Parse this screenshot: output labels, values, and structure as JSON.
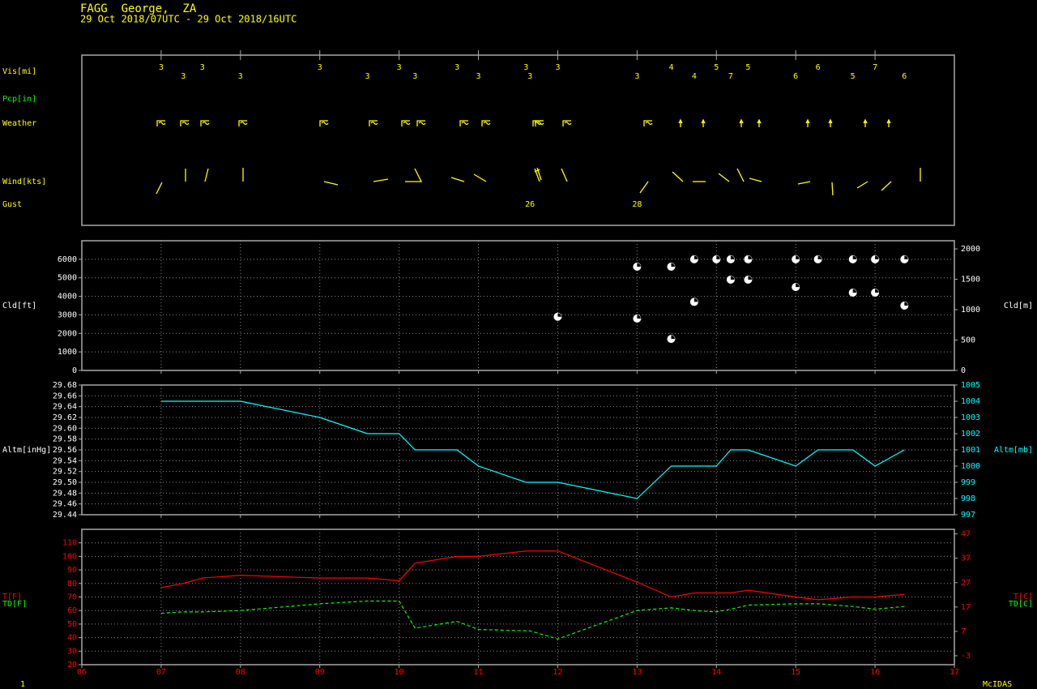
{
  "header": {
    "title": "FAGG  George,  ZA",
    "subtitle": "29 Oct 2018/07UTC - 29 Oct 2018/16UTC"
  },
  "footer": {
    "left": "1",
    "right": "McIDAS"
  },
  "chart_data": [
    {
      "type": "text",
      "x": [
        7,
        7.28,
        7.52,
        8,
        9,
        9.6,
        10,
        10.2,
        10.73,
        11,
        11.6,
        11.65,
        12,
        13,
        13.43,
        13.72,
        14,
        14.18,
        14.4,
        15,
        15.28,
        15.72,
        16,
        16.37
      ],
      "xlim": [
        6,
        17
      ],
      "xticks": [
        7,
        8,
        9,
        10,
        11,
        12,
        13,
        14,
        15,
        16
      ],
      "rows": [
        {
          "name": "Vis[mi]",
          "color": "#ffff00",
          "values": [
            3,
            3,
            3,
            3,
            3,
            3,
            3,
            3,
            3,
            3,
            3,
            3,
            3,
            3,
            4,
            4,
            5,
            7,
            5,
            6,
            6,
            5,
            7,
            6
          ]
        },
        {
          "name": "Pcp[in]",
          "color": "#00ff00"
        },
        {
          "name": "Weather",
          "color": "#ffff00"
        },
        {
          "name": "Wind[kts]",
          "color": "#ffff00"
        },
        {
          "name": "Gust",
          "color": "#ffff00",
          "values": [
            null,
            null,
            null,
            null,
            null,
            null,
            null,
            null,
            null,
            null,
            null,
            26,
            null,
            28,
            null,
            null,
            null,
            null,
            null,
            null,
            null,
            null,
            null,
            null
          ]
        }
      ]
    },
    {
      "type": "scatter",
      "ylabel": "Cld[ft]",
      "y2label": "Cld[m]",
      "color": "#ffffff",
      "grid": true,
      "x": [
        12,
        13,
        13,
        13.43,
        13.43,
        13.72,
        13.72,
        14,
        14.18,
        14.18,
        14.4,
        14.4,
        15,
        15,
        15.28,
        15.72,
        15.72,
        16,
        16,
        16.37,
        16.37
      ],
      "values": [
        2900,
        5600,
        2800,
        5600,
        1700,
        6000,
        3700,
        6000,
        6000,
        4900,
        6000,
        4900,
        6000,
        4500,
        6000,
        6000,
        4200,
        6000,
        4200,
        6000,
        3500
      ],
      "xlim": [
        6,
        17
      ],
      "xticks": [
        7,
        8,
        9,
        10,
        11,
        12,
        13,
        14,
        15,
        16
      ],
      "ylim": [
        0,
        7000
      ],
      "yticks": [
        0,
        1000,
        2000,
        3000,
        4000,
        5000,
        6000
      ],
      "y2lim": [
        0,
        2134
      ],
      "y2ticks": [
        0,
        500,
        1000,
        1500,
        2000
      ]
    },
    {
      "type": "line",
      "ylabel": "Altm[inHg]",
      "y2label": "Altm[mb]",
      "color": "#00ffff",
      "grid": true,
      "x": [
        7,
        7.28,
        7.52,
        8,
        9,
        9.6,
        10,
        10.2,
        10.73,
        11,
        11.6,
        11.65,
        12,
        13,
        13.43,
        13.72,
        14,
        14.18,
        14.4,
        15,
        15.28,
        15.72,
        16,
        16.37
      ],
      "series": [
        {
          "color": "#00ffff",
          "values": [
            29.65,
            29.65,
            29.65,
            29.65,
            29.62,
            29.59,
            29.59,
            29.56,
            29.56,
            29.53,
            29.5,
            29.5,
            29.5,
            29.47,
            29.53,
            29.53,
            29.53,
            29.56,
            29.56,
            29.53,
            29.56,
            29.56,
            29.53,
            29.56
          ]
        }
      ],
      "xlim": [
        6,
        17
      ],
      "xticks": [
        7,
        8,
        9,
        10,
        11,
        12,
        13,
        14,
        15,
        16
      ],
      "ylim": [
        29.44,
        29.68
      ],
      "yticks": [
        29.44,
        29.46,
        29.48,
        {
          "value": 29.5,
          "label": "29.50"
        },
        29.52,
        29.54,
        29.56,
        29.58,
        {
          "value": 29.6,
          "label": "29.60"
        },
        29.62,
        29.64,
        29.66,
        29.68
      ],
      "y2lim": [
        997,
        1005
      ],
      "y2ticks": [
        997,
        998,
        999,
        1000,
        1001,
        1002,
        1003,
        1004,
        1005
      ]
    },
    {
      "type": "line",
      "y2labels": [
        "T[C]",
        "TD[C]"
      ],
      "grid": true,
      "x": [
        7,
        7.28,
        7.52,
        8,
        9,
        9.6,
        10,
        10.2,
        10.73,
        11,
        11.6,
        11.65,
        12,
        13,
        13.43,
        13.72,
        14,
        14.18,
        14.4,
        15,
        15.28,
        15.72,
        16,
        16.37
      ],
      "series": [
        {
          "name": "T[F]",
          "color": "#ff0000",
          "dashed": false,
          "values": [
            77,
            80,
            84,
            86,
            84,
            84,
            82,
            95,
            100,
            100,
            104,
            104,
            104,
            81,
            70,
            73,
            73,
            73,
            75,
            70,
            68,
            70,
            70,
            72
          ]
        },
        {
          "name": "TD[F]",
          "color": "#00ff00",
          "dashed": true,
          "values": [
            58,
            59,
            59,
            60,
            65,
            67,
            67,
            47,
            52,
            46,
            45,
            45,
            39,
            60,
            62,
            60,
            59,
            61,
            64,
            65,
            65,
            63,
            61,
            63
          ]
        }
      ],
      "xlim": [
        6,
        17
      ],
      "xticks": [
        {
          "value": 6,
          "label": "06"
        },
        {
          "value": 7,
          "label": "07"
        },
        {
          "value": 8,
          "label": "08"
        },
        {
          "value": 9,
          "label": "09"
        },
        10,
        11,
        12,
        13,
        14,
        15,
        16,
        17
      ],
      "ylim": [
        20,
        120
      ],
      "yticks": [
        20,
        30,
        40,
        50,
        60,
        70,
        80,
        90,
        100,
        110
      ],
      "y2lim": [
        -6.67,
        48.89
      ],
      "y2ticks": [
        -3,
        7,
        17,
        27,
        37,
        47
      ]
    }
  ]
}
